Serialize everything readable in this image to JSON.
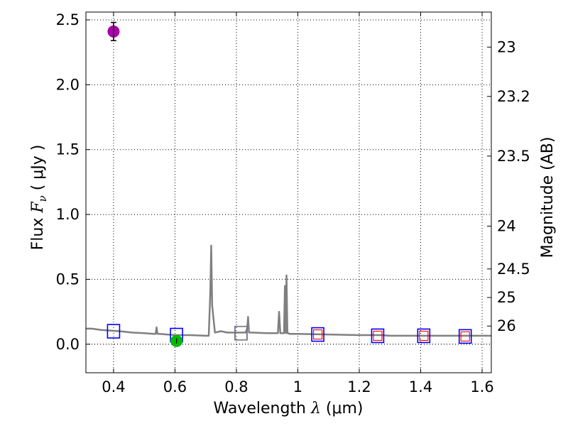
{
  "chart_data": {
    "type": "scatter",
    "xlabel_prefix": "Wavelength  ",
    "xlabel_symbol": "λ",
    "xlabel_unit": " (μm)",
    "ylabel_prefix": "Flux  ",
    "ylabel_symbol": "F",
    "ylabel_sub": "ν",
    "ylabel_unit": "  ( μJy )",
    "y2label": "Magnitude (AB)",
    "xlim": [
      0.31,
      1.63
    ],
    "ylim": [
      -0.22,
      2.56
    ],
    "grid": true,
    "x_ticks": [
      0.4,
      0.6,
      0.8,
      1.0,
      1.2,
      1.4,
      1.6
    ],
    "x_tick_labels": [
      "0.4",
      "0.6",
      "0.8",
      "1",
      "1.2",
      "1.4",
      "1.6"
    ],
    "y_ticks": [
      0.0,
      0.5,
      1.0,
      1.5,
      2.0,
      2.5
    ],
    "y_tick_labels": [
      "0.0",
      "0.5",
      "1.0",
      "1.5",
      "2.0",
      "2.5"
    ],
    "y2_ticks": [
      {
        "label": "23",
        "flux": 2.29
      },
      {
        "label": "23.2",
        "flux": 1.91
      },
      {
        "label": "23.5",
        "flux": 1.45
      },
      {
        "label": "24",
        "flux": 0.91
      },
      {
        "label": "24.5",
        "flux": 0.58
      },
      {
        "label": "25",
        "flux": 0.36
      },
      {
        "label": "26",
        "flux": 0.14
      }
    ],
    "template_spectrum": {
      "color": "#808080",
      "x": [
        0.31,
        0.33,
        0.36,
        0.39,
        0.42,
        0.46,
        0.5,
        0.53,
        0.537,
        0.54,
        0.543,
        0.55,
        0.6,
        0.65,
        0.7,
        0.71,
        0.715,
        0.718,
        0.721,
        0.73,
        0.75,
        0.77,
        0.8,
        0.83,
        0.835,
        0.838,
        0.841,
        0.85,
        0.9,
        0.935,
        0.939,
        0.943,
        0.95,
        0.955,
        0.958,
        0.961,
        0.963,
        0.966,
        0.969,
        0.972,
        1.0,
        1.1,
        1.2,
        1.27,
        1.3,
        1.4,
        1.5,
        1.63
      ],
      "y": [
        0.12,
        0.12,
        0.11,
        0.105,
        0.1,
        0.09,
        0.085,
        0.08,
        0.08,
        0.13,
        0.08,
        0.08,
        0.07,
        0.07,
        0.065,
        0.065,
        0.4,
        0.76,
        0.3,
        0.09,
        0.1,
        0.09,
        0.09,
        0.09,
        0.12,
        0.21,
        0.09,
        0.09,
        0.085,
        0.085,
        0.25,
        0.085,
        0.085,
        0.085,
        0.45,
        0.085,
        0.53,
        0.085,
        0.085,
        0.08,
        0.08,
        0.075,
        0.07,
        0.07,
        0.065,
        0.065,
        0.065,
        0.065
      ]
    },
    "series": [
      {
        "marker": "square",
        "color": "#0000ff",
        "x": [
          0.4,
          0.605,
          0.815,
          1.065,
          1.26,
          1.41,
          1.545
        ],
        "y": [
          0.1,
          0.07,
          0.085,
          0.075,
          0.065,
          0.065,
          0.06
        ]
      },
      {
        "marker": "square",
        "color": "#808080",
        "x": [
          0.815
        ],
        "y": [
          0.085
        ]
      },
      {
        "marker": "small-square",
        "color": "#ff0000",
        "x": [
          1.065,
          1.26,
          1.41,
          1.545
        ],
        "y": [
          0.075,
          0.065,
          0.065,
          0.06
        ]
      },
      {
        "marker": "circle",
        "color": "#aa00aa",
        "x": [
          0.4
        ],
        "y": [
          2.41
        ],
        "yerr": [
          0.07
        ]
      },
      {
        "marker": "circle",
        "color": "#00bb00",
        "x": [
          0.605
        ],
        "y": [
          0.025
        ],
        "yerr": [
          0.02
        ]
      }
    ]
  }
}
